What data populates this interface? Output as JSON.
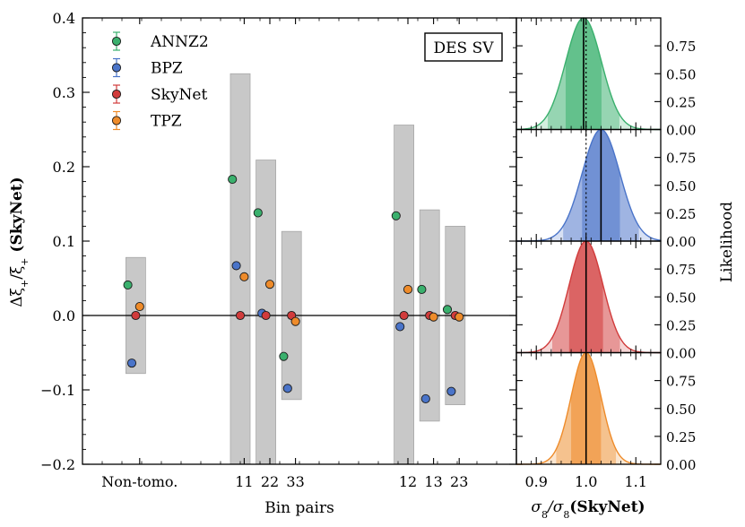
{
  "chart_data": [
    {
      "type": "scatter",
      "title": "",
      "annotation": "DES SV",
      "xlabel": "Bin pairs",
      "ylabel_parts": [
        "Δξ",
        "+",
        "/ξ",
        "+",
        " (SkyNet)"
      ],
      "ylim": [
        -0.2,
        0.4
      ],
      "yticks": [
        -0.2,
        -0.1,
        0.0,
        0.1,
        0.2,
        0.3,
        0.4
      ],
      "ytick_labels": [
        "−0.2",
        "−0.1",
        "0.0",
        "0.1",
        "0.2",
        "0.3",
        "0.4"
      ],
      "xlim": [
        0,
        22
      ],
      "xticks": [
        {
          "x": 2.9,
          "label": "Non-tomo."
        },
        {
          "x": 8.2,
          "label": "11"
        },
        {
          "x": 9.5,
          "label": "22"
        },
        {
          "x": 10.8,
          "label": "33"
        },
        {
          "x": 16.5,
          "label": "12"
        },
        {
          "x": 17.8,
          "label": "13"
        },
        {
          "x": 19.1,
          "label": "23"
        }
      ],
      "legend_position": "top-left",
      "series": [
        {
          "name": "ANNZ2",
          "color": "#3ab06d",
          "points": [
            {
              "x": 2.3,
              "y": 0.041
            },
            {
              "x": 7.6,
              "y": 0.183
            },
            {
              "x": 8.9,
              "y": 0.138
            },
            {
              "x": 10.2,
              "y": -0.055
            },
            {
              "x": 15.9,
              "y": 0.134
            },
            {
              "x": 17.2,
              "y": 0.035
            },
            {
              "x": 18.5,
              "y": 0.008
            }
          ]
        },
        {
          "name": "BPZ",
          "color": "#4a74c9",
          "points": [
            {
              "x": 2.5,
              "y": -0.064
            },
            {
              "x": 7.8,
              "y": 0.067
            },
            {
              "x": 9.1,
              "y": 0.003
            },
            {
              "x": 10.4,
              "y": -0.098
            },
            {
              "x": 16.1,
              "y": -0.015
            },
            {
              "x": 17.4,
              "y": -0.112
            },
            {
              "x": 18.7,
              "y": -0.102
            }
          ]
        },
        {
          "name": "SkyNet",
          "color": "#d13b3b",
          "points": [
            {
              "x": 2.7,
              "y": 0.0
            },
            {
              "x": 8.0,
              "y": 0.0
            },
            {
              "x": 9.3,
              "y": 0.0
            },
            {
              "x": 10.6,
              "y": 0.0
            },
            {
              "x": 16.3,
              "y": 0.0
            },
            {
              "x": 17.6,
              "y": 0.0
            },
            {
              "x": 18.9,
              "y": 0.0
            }
          ]
        },
        {
          "name": "TPZ",
          "color": "#ee8b2a",
          "points": [
            {
              "x": 2.9,
              "y": 0.012
            },
            {
              "x": 8.2,
              "y": 0.052
            },
            {
              "x": 9.5,
              "y": 0.042
            },
            {
              "x": 10.8,
              "y": -0.008
            },
            {
              "x": 16.5,
              "y": 0.035
            },
            {
              "x": 17.8,
              "y": -0.002
            },
            {
              "x": 19.1,
              "y": -0.002
            }
          ]
        }
      ],
      "error_bands": [
        {
          "x": [
            2.2,
            3.2
          ],
          "y": [
            -0.078,
            0.078
          ]
        },
        {
          "x": [
            7.5,
            8.5
          ],
          "y": [
            -0.2,
            0.325
          ]
        },
        {
          "x": [
            8.8,
            9.8
          ],
          "y": [
            -0.2,
            0.209
          ]
        },
        {
          "x": [
            10.1,
            11.1
          ],
          "y": [
            -0.113,
            0.113
          ]
        },
        {
          "x": [
            15.8,
            16.8
          ],
          "y": [
            -0.2,
            0.256
          ]
        },
        {
          "x": [
            17.1,
            18.1
          ],
          "y": [
            -0.142,
            0.142
          ]
        },
        {
          "x": [
            18.4,
            19.4
          ],
          "y": [
            -0.12,
            0.12
          ]
        }
      ]
    },
    {
      "type": "area",
      "xlabel_parts": [
        "σ",
        "8",
        "/σ",
        "8",
        "(SkyNet)"
      ],
      "ylabel": "Likelihood",
      "xlim": [
        0.86,
        1.15
      ],
      "xticks": [
        0.9,
        1.0,
        1.1
      ],
      "xtick_labels": [
        "0.9",
        "1.0",
        "1.1"
      ],
      "ylim": [
        0,
        1
      ],
      "yticks": [
        0.0,
        0.25,
        0.5,
        0.75
      ],
      "ytick_labels": [
        "0.00",
        "0.25",
        "0.50",
        "0.75"
      ],
      "reference_line": 1.0,
      "panels": [
        {
          "name": "ANNZ2",
          "color": "#3ab06d",
          "mean": 0.995,
          "sigma": 0.036
        },
        {
          "name": "BPZ",
          "color": "#4a74c9",
          "mean": 1.03,
          "sigma": 0.038
        },
        {
          "name": "SkyNet",
          "color": "#d13b3b",
          "mean": 1.0,
          "sigma": 0.034
        },
        {
          "name": "TPZ",
          "color": "#ee8b2a",
          "mean": 1.0,
          "sigma": 0.03
        }
      ]
    }
  ]
}
